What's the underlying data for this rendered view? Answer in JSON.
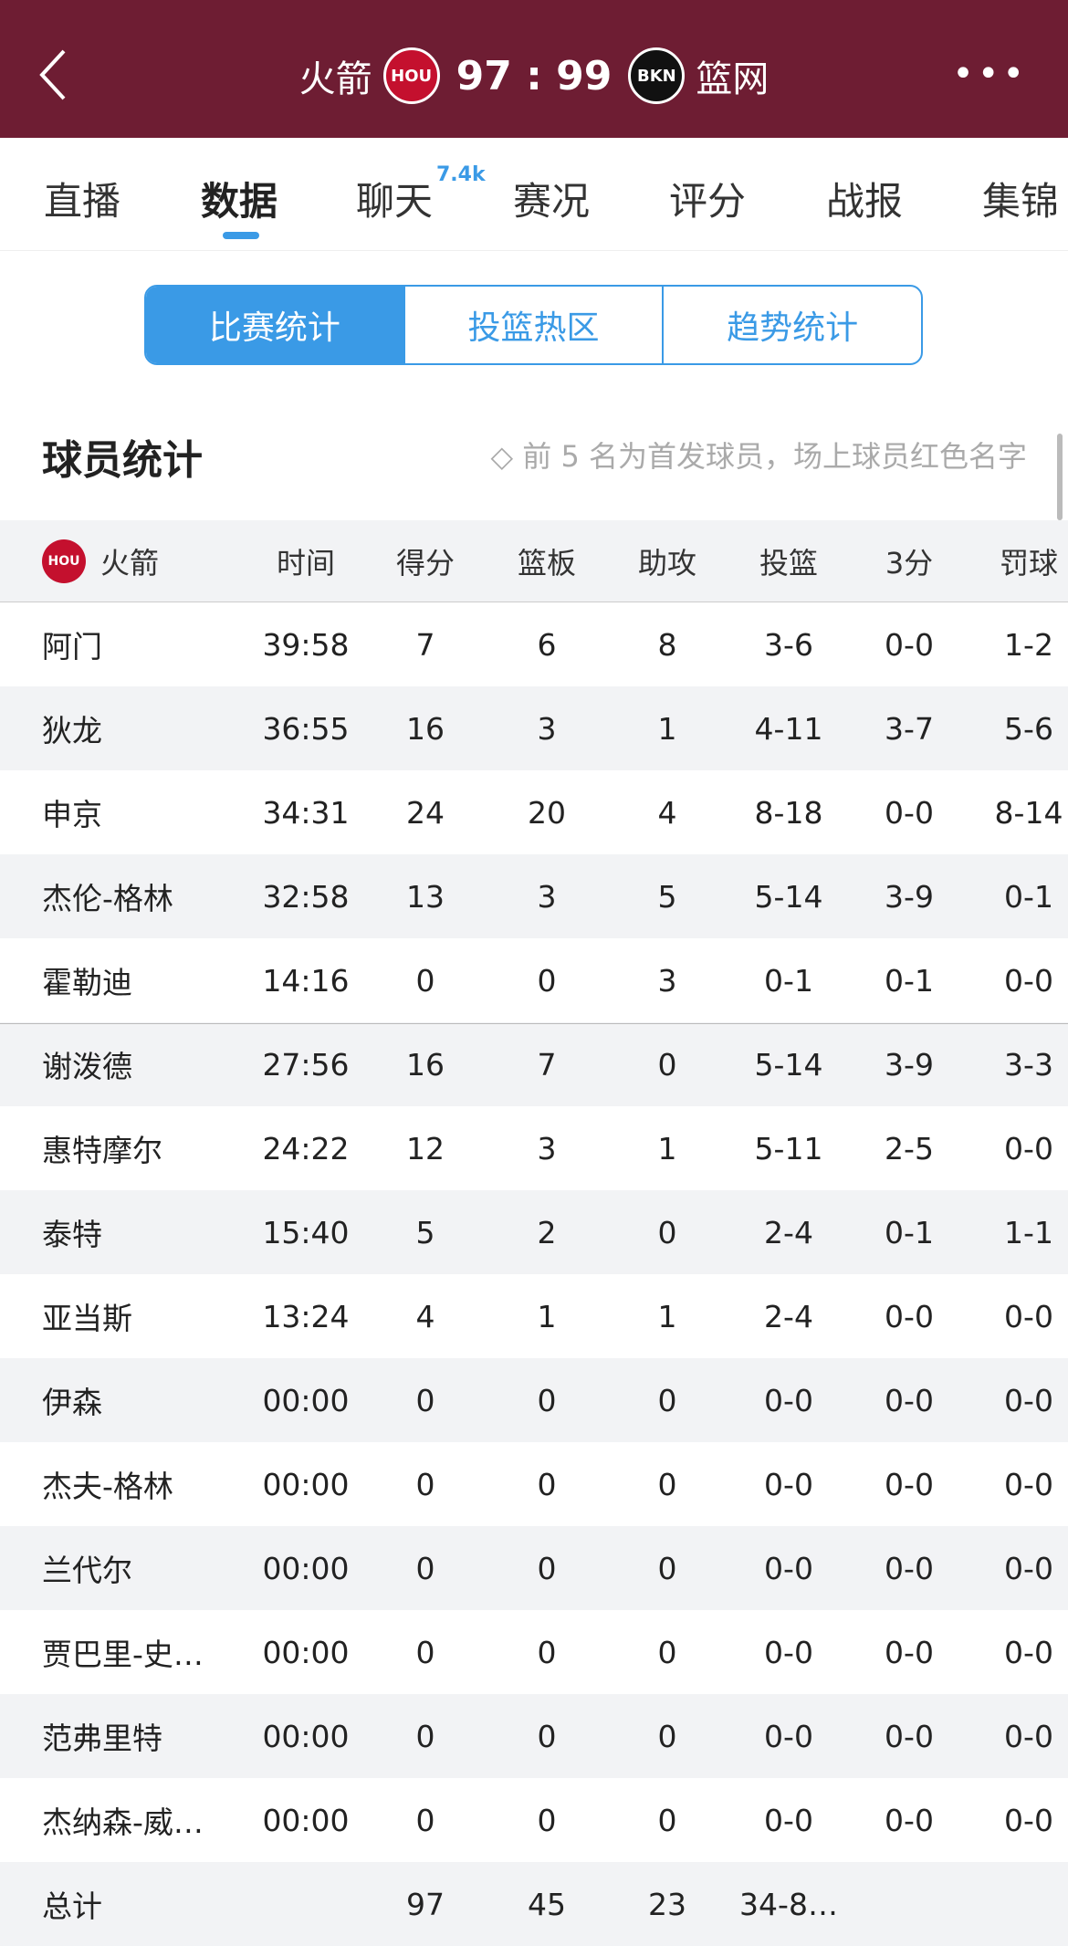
{
  "header": {
    "home_team": "火箭",
    "home_logo": "HOU",
    "score": "97 : 99",
    "away_logo": "BKN",
    "away_team": "篮网"
  },
  "tabs": [
    {
      "label": "直播"
    },
    {
      "label": "数据"
    },
    {
      "label": "聊天",
      "badge": "7.4k"
    },
    {
      "label": "赛况"
    },
    {
      "label": "评分"
    },
    {
      "label": "战报"
    },
    {
      "label": "集锦"
    }
  ],
  "segments": [
    "比赛统计",
    "投篮热区",
    "趋势统计"
  ],
  "section": {
    "title": "球员统计",
    "note": "前 5 名为首发球员，场上球员红色名字"
  },
  "table": {
    "columns": [
      "火箭",
      "时间",
      "得分",
      "篮板",
      "助攻",
      "投篮",
      "3分",
      "罚球"
    ],
    "rows": [
      [
        "阿门",
        "39:58",
        "7",
        "6",
        "8",
        "3-6",
        "0-0",
        "1-2"
      ],
      [
        "狄龙",
        "36:55",
        "16",
        "3",
        "1",
        "4-11",
        "3-7",
        "5-6"
      ],
      [
        "申京",
        "34:31",
        "24",
        "20",
        "4",
        "8-18",
        "0-0",
        "8-14"
      ],
      [
        "杰伦-格林",
        "32:58",
        "13",
        "3",
        "5",
        "5-14",
        "3-9",
        "0-1"
      ],
      [
        "霍勒迪",
        "14:16",
        "0",
        "0",
        "3",
        "0-1",
        "0-1",
        "0-0"
      ],
      [
        "谢泼德",
        "27:56",
        "16",
        "7",
        "0",
        "5-14",
        "3-9",
        "3-3"
      ],
      [
        "惠特摩尔",
        "24:22",
        "12",
        "3",
        "1",
        "5-11",
        "2-5",
        "0-0"
      ],
      [
        "泰特",
        "15:40",
        "5",
        "2",
        "0",
        "2-4",
        "0-1",
        "1-1"
      ],
      [
        "亚当斯",
        "13:24",
        "4",
        "1",
        "1",
        "2-4",
        "0-0",
        "0-0"
      ],
      [
        "伊森",
        "00:00",
        "0",
        "0",
        "0",
        "0-0",
        "0-0",
        "0-0"
      ],
      [
        "杰夫-格林",
        "00:00",
        "0",
        "0",
        "0",
        "0-0",
        "0-0",
        "0-0"
      ],
      [
        "兰代尔",
        "00:00",
        "0",
        "0",
        "0",
        "0-0",
        "0-0",
        "0-0"
      ],
      [
        "贾巴里-史…",
        "00:00",
        "0",
        "0",
        "0",
        "0-0",
        "0-0",
        "0-0"
      ],
      [
        "范弗里特",
        "00:00",
        "0",
        "0",
        "0",
        "0-0",
        "0-0",
        "0-0"
      ],
      [
        "杰纳森-威…",
        "00:00",
        "0",
        "0",
        "0",
        "0-0",
        "0-0",
        "0-0"
      ],
      [
        "总计",
        "",
        "97",
        "45",
        "23",
        "34-8…",
        "",
        ""
      ]
    ]
  }
}
